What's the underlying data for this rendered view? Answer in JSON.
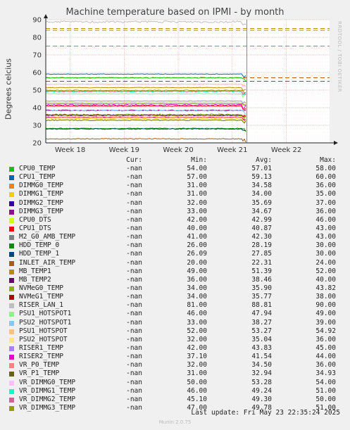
{
  "chart_data": {
    "type": "line",
    "title": "Machine temperature based on IPMI - by month",
    "ylabel": "Degrees celcius",
    "ylim": [
      20,
      90
    ],
    "yticks": [
      20,
      30,
      40,
      50,
      60,
      70,
      80,
      90
    ],
    "xticks": [
      "Week 18",
      "Week 19",
      "Week 20",
      "Week 21",
      "Week 22"
    ],
    "grid": true,
    "thresholds": [
      85,
      84,
      75,
      57,
      55
    ],
    "legend_headers": {
      "cur": "Cur:",
      "min": "Min:",
      "avg": "Avg:",
      "max": "Max:"
    },
    "series": [
      {
        "name": "CPU0_TEMP",
        "color": "#00cc00",
        "cur": "-nan",
        "min": "54.00",
        "avg": "57.01",
        "max": "58.00",
        "value": 57.0
      },
      {
        "name": "CPU1_TEMP",
        "color": "#0066b3",
        "cur": "-nan",
        "min": "57.00",
        "avg": "59.13",
        "max": "60.00",
        "value": 59.1
      },
      {
        "name": "DIMMG0_TEMP",
        "color": "#ff8000",
        "cur": "-nan",
        "min": "31.00",
        "avg": "34.58",
        "max": "36.00",
        "value": 34.6
      },
      {
        "name": "DIMMG1_TEMP",
        "color": "#ffcc00",
        "cur": "-nan",
        "min": "31.00",
        "avg": "34.00",
        "max": "35.00",
        "value": 34.0
      },
      {
        "name": "DIMMG2_TEMP",
        "color": "#330099",
        "cur": "-nan",
        "min": "32.00",
        "avg": "35.69",
        "max": "37.00",
        "value": 35.7
      },
      {
        "name": "DIMMG3_TEMP",
        "color": "#990099",
        "cur": "-nan",
        "min": "33.00",
        "avg": "34.67",
        "max": "36.00",
        "value": 34.7
      },
      {
        "name": "CPU0_DTS",
        "color": "#ccff00",
        "cur": "-nan",
        "min": "42.00",
        "avg": "42.99",
        "max": "46.00",
        "value": 43.0
      },
      {
        "name": "CPU1_DTS",
        "color": "#ff0000",
        "cur": "-nan",
        "min": "40.00",
        "avg": "40.87",
        "max": "43.00",
        "value": 40.9
      },
      {
        "name": "M2_G0_AMB_TEMP",
        "color": "#808080",
        "cur": "-nan",
        "min": "41.00",
        "avg": "42.30",
        "max": "43.00",
        "value": 42.3
      },
      {
        "name": "HDD_TEMP_0",
        "color": "#008f00",
        "cur": "-nan",
        "min": "26.00",
        "avg": "28.19",
        "max": "30.00",
        "value": 28.2
      },
      {
        "name": "HDD_TEMP_1",
        "color": "#00487d",
        "cur": "-nan",
        "min": "26.09",
        "avg": "27.85",
        "max": "30.00",
        "value": 27.9
      },
      {
        "name": "INLET_AIR_TEMP",
        "color": "#b35a00",
        "cur": "-nan",
        "min": "20.00",
        "avg": "22.31",
        "max": "24.00",
        "value": 22.3
      },
      {
        "name": "MB_TEMP1",
        "color": "#b38f00",
        "cur": "-nan",
        "min": "49.00",
        "avg": "51.39",
        "max": "52.00",
        "value": 51.4
      },
      {
        "name": "MB_TEMP2",
        "color": "#6b006b",
        "cur": "-nan",
        "min": "36.00",
        "avg": "38.46",
        "max": "40.00",
        "value": 38.5
      },
      {
        "name": "NVMeG0_TEMP",
        "color": "#8fb300",
        "cur": "-nan",
        "min": "34.00",
        "avg": "35.90",
        "max": "43.82",
        "value": 35.9
      },
      {
        "name": "NVMeG1_TEMP",
        "color": "#b30000",
        "cur": "-nan",
        "min": "34.00",
        "avg": "35.77",
        "max": "38.00",
        "value": 35.8
      },
      {
        "name": "RISER_LAN_1",
        "color": "#bebebe",
        "cur": "-nan",
        "min": "81.00",
        "avg": "88.81",
        "max": "90.00",
        "value": 88.8
      },
      {
        "name": "PSU1_HOTSPOT1",
        "color": "#80ff80",
        "cur": "-nan",
        "min": "46.00",
        "avg": "47.94",
        "max": "49.00",
        "value": 47.9
      },
      {
        "name": "PSU2_HOTSPOT1",
        "color": "#80c9ff",
        "cur": "-nan",
        "min": "33.00",
        "avg": "38.27",
        "max": "39.00",
        "value": 38.3
      },
      {
        "name": "PSU1_HOTSPOT",
        "color": "#ffc080",
        "cur": "-nan",
        "min": "52.00",
        "avg": "53.27",
        "max": "54.92",
        "value": 53.3
      },
      {
        "name": "PSU2_HOTSPOT",
        "color": "#ffe680",
        "cur": "-nan",
        "min": "32.00",
        "avg": "35.04",
        "max": "36.00",
        "value": 35.0
      },
      {
        "name": "RISER1_TEMP",
        "color": "#aa80ff",
        "cur": "-nan",
        "min": "42.00",
        "avg": "43.83",
        "max": "45.00",
        "value": 43.8
      },
      {
        "name": "RISER2_TEMP",
        "color": "#ee00cc",
        "cur": "-nan",
        "min": "37.10",
        "avg": "41.54",
        "max": "44.00",
        "value": 41.5
      },
      {
        "name": "VR_P0_TEMP",
        "color": "#ff8080",
        "cur": "-nan",
        "min": "32.00",
        "avg": "34.50",
        "max": "36.00",
        "value": 34.5
      },
      {
        "name": "VR_P1_TEMP",
        "color": "#666600",
        "cur": "-nan",
        "min": "31.00",
        "avg": "32.94",
        "max": "34.93",
        "value": 32.9
      },
      {
        "name": "VR_DIMMG0_TEMP",
        "color": "#ffbfff",
        "cur": "-nan",
        "min": "50.00",
        "avg": "53.28",
        "max": "54.00",
        "value": 53.3
      },
      {
        "name": "VR_DIMMG1_TEMP",
        "color": "#00ffcc",
        "cur": "-nan",
        "min": "46.00",
        "avg": "49.24",
        "max": "51.00",
        "value": 49.2
      },
      {
        "name": "VR_DIMMG2_TEMP",
        "color": "#cc6699",
        "cur": "-nan",
        "min": "45.10",
        "avg": "49.30",
        "max": "50.00",
        "value": 49.3
      },
      {
        "name": "VR_DIMMG3_TEMP",
        "color": "#999900",
        "cur": "-nan",
        "min": "47.00",
        "avg": "49.78",
        "max": "51.00",
        "value": 49.8
      }
    ]
  },
  "footer": {
    "last_update": "Last update: Fri May 23 22:35:24 2025",
    "version": "Munin 2.0.75"
  },
  "side_note": "RRDTOOL / TOBI OETIKER"
}
